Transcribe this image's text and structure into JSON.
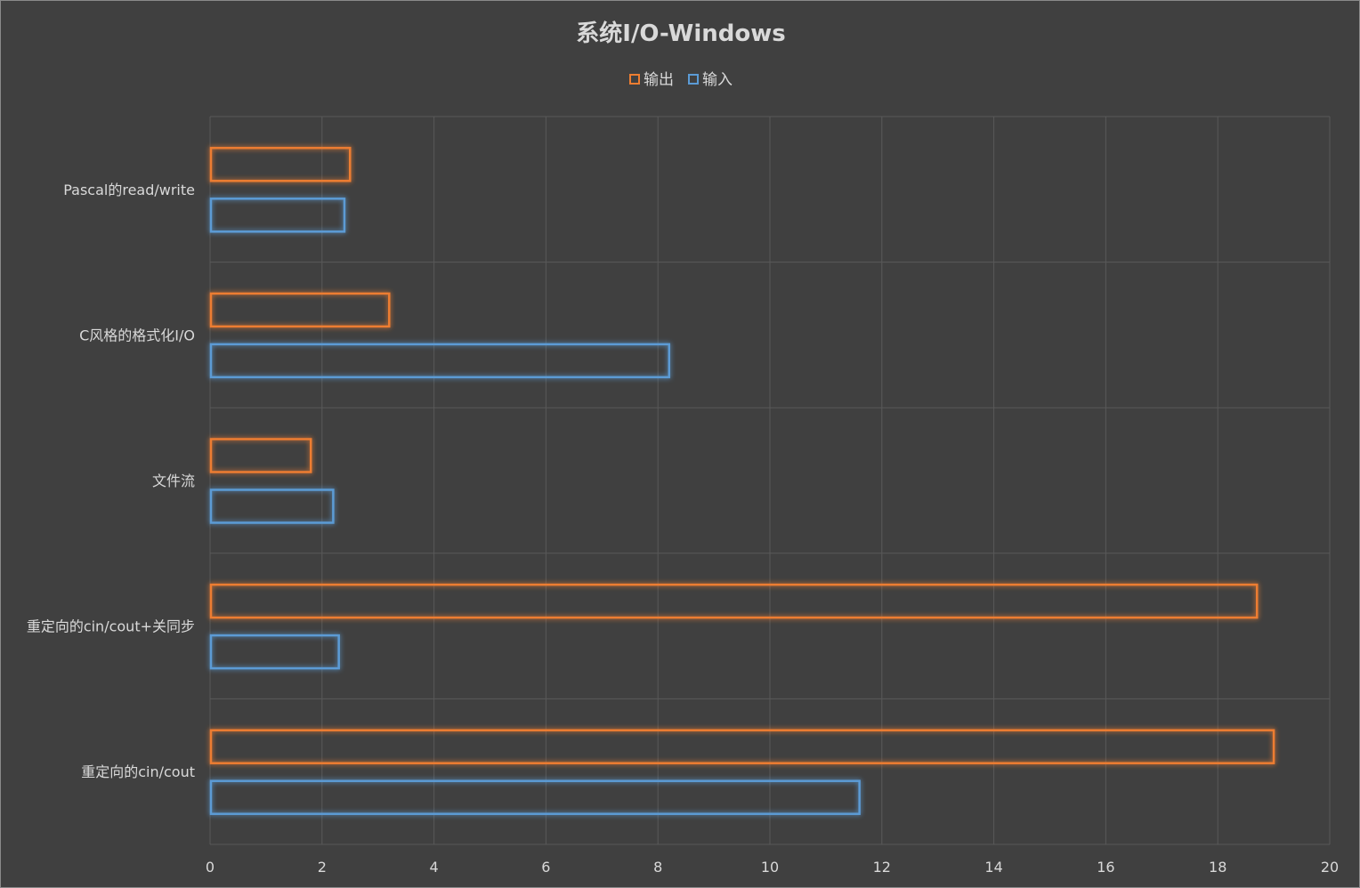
{
  "chart_data": {
    "type": "bar",
    "orientation": "horizontal",
    "title": "系统I/O-Windows",
    "xlabel": "",
    "ylabel": "",
    "xlim": [
      0,
      20
    ],
    "x_ticks": [
      0,
      2,
      4,
      6,
      8,
      10,
      12,
      14,
      16,
      18,
      20
    ],
    "grid": true,
    "legend_position": "top",
    "categories": [
      "Pascal的read/write",
      "C风格的格式化I/O",
      "文件流",
      "重定向的cin/cout+关同步",
      "重定向的cin/cout"
    ],
    "series": [
      {
        "name": "输出",
        "color": "#ED7D31",
        "values": [
          2.5,
          3.2,
          1.8,
          18.7,
          19.0
        ]
      },
      {
        "name": "输入",
        "color": "#5B9BD5",
        "values": [
          2.4,
          8.2,
          2.2,
          2.3,
          11.6
        ]
      }
    ],
    "colors": {
      "background": "#404040",
      "gridline": "#595959",
      "text": "#D9D9D9",
      "title": "#D9D9D9"
    }
  }
}
